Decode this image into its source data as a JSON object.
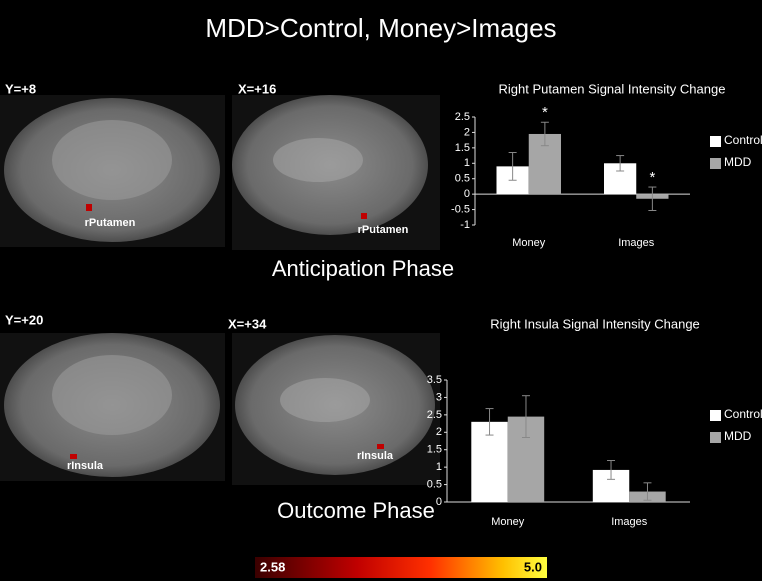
{
  "title": "MDD>Control, Money>Images",
  "panels": [
    {
      "phase": "Anticipation Phase",
      "coronal_label": "Y=+8",
      "sagittal_label": "X=+16",
      "coronal_region": "rPutamen",
      "sagittal_region": "rPutamen"
    },
    {
      "phase": "Outcome Phase",
      "coronal_label": "Y=+20",
      "sagittal_label": "X=+34",
      "coronal_region": "rInsula",
      "sagittal_region": "rInsula"
    }
  ],
  "colorbar": {
    "min_label": "2.58",
    "max_label": "5.0"
  },
  "chart_data": [
    {
      "type": "bar",
      "title": "Right Putamen Signal Intensity Change",
      "categories": [
        "Money",
        "Images"
      ],
      "series": [
        {
          "name": "Control",
          "color": "#ffffff",
          "values": [
            0.9,
            1.0
          ],
          "errors": [
            0.45,
            0.25
          ]
        },
        {
          "name": "MDD",
          "color": "#a6a6a6",
          "values": [
            1.95,
            -0.15
          ],
          "errors": [
            0.38,
            0.38
          ],
          "significance": [
            "*",
            "*"
          ]
        }
      ],
      "ylim": [
        -1,
        2.5
      ],
      "yticks": [
        -1,
        -0.5,
        0,
        0.5,
        1,
        1.5,
        2,
        2.5
      ]
    },
    {
      "type": "bar",
      "title": "Right Insula Signal Intensity Change",
      "categories": [
        "Money",
        "Images"
      ],
      "series": [
        {
          "name": "Control",
          "color": "#ffffff",
          "values": [
            2.3,
            0.92
          ],
          "errors": [
            0.38,
            0.27
          ]
        },
        {
          "name": "MDD",
          "color": "#a6a6a6",
          "values": [
            2.45,
            0.3
          ],
          "errors": [
            0.6,
            0.25
          ]
        }
      ],
      "ylim": [
        0,
        3.5
      ],
      "yticks": [
        0,
        0.5,
        1,
        1.5,
        2,
        2.5,
        3,
        3.5
      ]
    }
  ]
}
